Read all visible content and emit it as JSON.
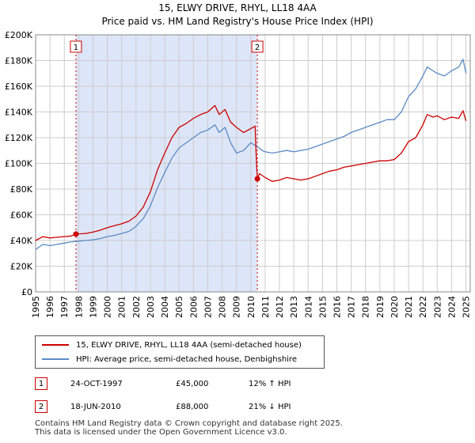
{
  "colors": {
    "property": "#cc0000",
    "hpi": "#5a8ac6",
    "shade": "#dde6f8",
    "grid": "#cccccc",
    "marker_border": "#cc0000"
  },
  "chart_data": {
    "type": "line",
    "title": "15, ELWY DRIVE, RHYL, LL18 4AA",
    "subtitle": "Price paid vs. HM Land Registry's House Price Index (HPI)",
    "xlabel": "",
    "ylabel": "",
    "xlim": [
      1995,
      2025.3
    ],
    "ylim": [
      0,
      200000
    ],
    "grid": true,
    "y_ticks": [
      0,
      20000,
      40000,
      60000,
      80000,
      100000,
      120000,
      140000,
      160000,
      180000,
      200000
    ],
    "y_tick_labels": [
      "£0",
      "£20K",
      "£40K",
      "£60K",
      "£80K",
      "£100K",
      "£120K",
      "£140K",
      "£160K",
      "£180K",
      "£200K"
    ],
    "x_ticks": [
      1995,
      1996,
      1997,
      1998,
      1999,
      2000,
      2001,
      2002,
      2003,
      2004,
      2005,
      2006,
      2007,
      2008,
      2009,
      2010,
      2011,
      2012,
      2013,
      2014,
      2015,
      2016,
      2017,
      2018,
      2019,
      2020,
      2021,
      2022,
      2023,
      2024,
      2025
    ],
    "x_tick_labels": [
      "1995",
      "1996",
      "1997",
      "1998",
      "1999",
      "2000",
      "2001",
      "2002",
      "2003",
      "2004",
      "2005",
      "2006",
      "2007",
      "2008",
      "2009",
      "2010",
      "2011",
      "2012",
      "2013",
      "2014",
      "2015",
      "2016",
      "2017",
      "2018",
      "2019",
      "2020",
      "2021",
      "2022",
      "2023",
      "2024",
      "2025"
    ],
    "shaded_region": [
      1997.81,
      2010.46
    ],
    "series": [
      {
        "name": "15, ELWY DRIVE, RHYL, LL18 4AA (semi-detached house)",
        "color": "#cc0000",
        "x": [
          1995.0,
          1995.5,
          1996.0,
          1996.5,
          1997.0,
          1997.5,
          1997.81,
          1998.5,
          1999.0,
          1999.5,
          2000.0,
          2000.5,
          2001.0,
          2001.5,
          2002.0,
          2002.5,
          2003.0,
          2003.5,
          2004.0,
          2004.5,
          2005.0,
          2005.5,
          2006.0,
          2006.5,
          2007.0,
          2007.5,
          2007.8,
          2008.2,
          2008.6,
          2009.0,
          2009.5,
          2010.0,
          2010.3,
          2010.4,
          2010.46,
          2010.6,
          2011.0,
          2011.5,
          2012.0,
          2012.5,
          2013.0,
          2013.5,
          2014.0,
          2014.5,
          2015.0,
          2015.5,
          2016.0,
          2016.5,
          2017.0,
          2017.5,
          2018.0,
          2018.5,
          2019.0,
          2019.5,
          2020.0,
          2020.5,
          2021.0,
          2021.5,
          2022.0,
          2022.3,
          2022.7,
          2023.0,
          2023.5,
          2024.0,
          2024.5,
          2024.8,
          2025.0
        ],
        "values": [
          40000,
          43000,
          42000,
          42500,
          43000,
          43500,
          45000,
          45500,
          46500,
          48000,
          50000,
          51500,
          53000,
          55000,
          59000,
          66000,
          78000,
          95000,
          108000,
          120000,
          128000,
          131000,
          135000,
          138000,
          140000,
          145000,
          138000,
          142000,
          132000,
          128000,
          124000,
          127000,
          129000,
          100000,
          88000,
          92000,
          89000,
          86000,
          87000,
          89000,
          88000,
          87000,
          88000,
          90000,
          92000,
          94000,
          95000,
          97000,
          98000,
          99000,
          100000,
          101000,
          102000,
          102000,
          103000,
          108000,
          117000,
          120000,
          130000,
          138000,
          136000,
          137000,
          134000,
          136000,
          135000,
          141000,
          133000
        ]
      },
      {
        "name": "HPI: Average price, semi-detached house, Denbighshire",
        "color": "#5a8ac6",
        "x": [
          1995.0,
          1995.5,
          1996.0,
          1996.5,
          1997.0,
          1997.5,
          1998.0,
          1998.5,
          1999.0,
          1999.5,
          2000.0,
          2000.5,
          2001.0,
          2001.5,
          2002.0,
          2002.5,
          2003.0,
          2003.5,
          2004.0,
          2004.5,
          2005.0,
          2005.5,
          2006.0,
          2006.5,
          2007.0,
          2007.5,
          2007.8,
          2008.2,
          2008.6,
          2009.0,
          2009.5,
          2010.0,
          2010.46,
          2010.8,
          2011.0,
          2011.5,
          2012.0,
          2012.5,
          2013.0,
          2013.5,
          2014.0,
          2014.5,
          2015.0,
          2015.5,
          2016.0,
          2016.5,
          2017.0,
          2017.5,
          2018.0,
          2018.5,
          2019.0,
          2019.5,
          2020.0,
          2020.5,
          2021.0,
          2021.5,
          2022.0,
          2022.3,
          2022.7,
          2023.0,
          2023.5,
          2024.0,
          2024.5,
          2024.8,
          2025.0
        ],
        "values": [
          33000,
          37000,
          36000,
          37000,
          38000,
          39000,
          39500,
          40000,
          40500,
          41500,
          43000,
          44000,
          45500,
          47000,
          51000,
          57000,
          67000,
          81000,
          93000,
          104000,
          112000,
          116000,
          120000,
          124000,
          126000,
          130000,
          124000,
          128000,
          116000,
          108000,
          110000,
          116000,
          113000,
          110000,
          109000,
          108000,
          109000,
          110000,
          109000,
          110000,
          111000,
          113000,
          115000,
          117000,
          119000,
          121000,
          124000,
          126000,
          128000,
          130000,
          132000,
          134000,
          134000,
          140000,
          152000,
          158000,
          168000,
          175000,
          172000,
          170000,
          168000,
          172000,
          175000,
          181000,
          170000
        ]
      }
    ],
    "markers": [
      {
        "label": "1",
        "x": 1997.81,
        "y": 45000
      },
      {
        "label": "2",
        "x": 2010.46,
        "y": 88000
      }
    ]
  },
  "legend": {
    "property": "15, ELWY DRIVE, RHYL, LL18 4AA (semi-detached house)",
    "hpi": "HPI: Average price, semi-detached house, Denbighshire"
  },
  "sales": [
    {
      "label": "1",
      "date": "24-OCT-1997",
      "price": "£45,000",
      "hpi": "12% ↑ HPI"
    },
    {
      "label": "2",
      "date": "18-JUN-2010",
      "price": "£88,000",
      "hpi": "21% ↓ HPI"
    }
  ],
  "footer": {
    "line1": "Contains HM Land Registry data © Crown copyright and database right 2025.",
    "line2": "This data is licensed under the Open Government Licence v3.0."
  }
}
